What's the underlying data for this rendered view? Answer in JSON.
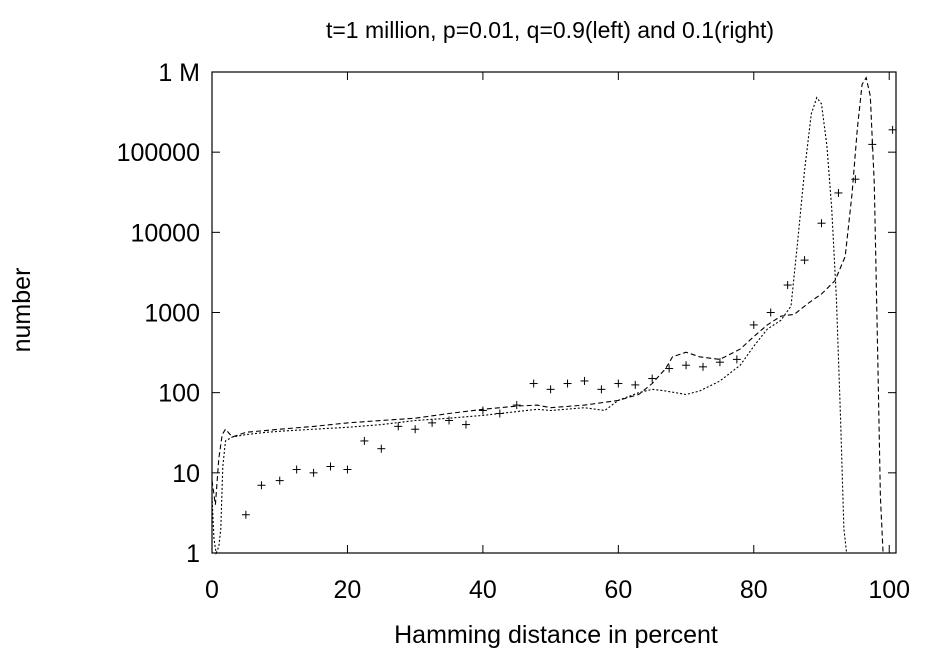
{
  "chart_data": {
    "type": "line",
    "title": "t=1 million, p=0.01, q=0.9(left) and 0.1(right)",
    "xlabel": "Hamming distance in percent",
    "ylabel": "number",
    "xlim": [
      0,
      101
    ],
    "ylim": [
      1,
      1000000
    ],
    "yscale": "log",
    "grid": false,
    "x_ticks": [
      0,
      20,
      40,
      60,
      80,
      100
    ],
    "x_tick_labels": [
      "0",
      "20",
      "40",
      "60",
      "80",
      "100"
    ],
    "y_ticks": [
      1,
      10,
      100,
      1000,
      10000,
      100000,
      1000000
    ],
    "y_tick_labels": [
      "1",
      "10",
      "100",
      "1000",
      "10000",
      "100000",
      "1 M"
    ],
    "series": [
      {
        "style": "dotted",
        "x": [
          0,
          0.3,
          0.6,
          1,
          1.3,
          1.6,
          2,
          3,
          5,
          8,
          10,
          15,
          20,
          25,
          30,
          35,
          40,
          45,
          48,
          50,
          55,
          58,
          60,
          63,
          65,
          67,
          70,
          72,
          75,
          78,
          80,
          82,
          84,
          85.5,
          86.5,
          87.5,
          88.5,
          89.3,
          90,
          90.8,
          91.5,
          92.2,
          92.8,
          93.3,
          93.7
        ],
        "y": [
          5,
          1.5,
          1,
          1.2,
          2,
          12,
          25,
          28,
          30,
          32,
          33,
          35,
          37,
          40,
          45,
          48,
          52,
          58,
          62,
          60,
          65,
          60,
          80,
          100,
          110,
          105,
          95,
          105,
          140,
          220,
          380,
          620,
          800,
          1200,
          8000,
          60000,
          300000,
          480000,
          400000,
          120000,
          20000,
          1500,
          50,
          2,
          1
        ]
      },
      {
        "style": "dashed",
        "x": [
          0,
          0.5,
          1,
          1.5,
          2,
          3,
          5,
          10,
          15,
          20,
          25,
          30,
          35,
          40,
          45,
          48,
          50,
          55,
          60,
          63,
          65,
          67,
          68,
          70,
          72,
          75,
          78,
          80,
          82,
          84,
          86,
          88,
          90,
          92,
          93.5,
          94.5,
          95.3,
          96,
          96.6,
          97.2,
          97.8,
          98.3,
          98.7,
          99.1
        ],
        "y": [
          8,
          4,
          15,
          30,
          35,
          28,
          32,
          35,
          38,
          42,
          45,
          48,
          55,
          62,
          68,
          70,
          65,
          70,
          80,
          95,
          130,
          200,
          280,
          320,
          280,
          260,
          350,
          500,
          700,
          900,
          950,
          1300,
          1700,
          2500,
          5000,
          30000,
          200000,
          700000,
          850000,
          500000,
          40000,
          300,
          5,
          1
        ]
      },
      {
        "style": "markers",
        "x": [
          5,
          7.3,
          10,
          12.5,
          15,
          17.5,
          20,
          22.5,
          25,
          27.5,
          30,
          32.5,
          35,
          37.5,
          40,
          42.5,
          45,
          47.5,
          50,
          52.5,
          55,
          57.5,
          60,
          62.5,
          65,
          67.5,
          70,
          72.5,
          75,
          77.5,
          80,
          82.5,
          85,
          87.5,
          90,
          92.5,
          95,
          97.5,
          100.5
        ],
        "y": [
          3,
          7,
          8,
          11,
          10,
          12,
          11,
          25,
          20,
          38,
          35,
          42,
          45,
          40,
          60,
          55,
          70,
          130,
          110,
          130,
          140,
          110,
          130,
          125,
          150,
          200,
          220,
          210,
          240,
          260,
          700,
          1000,
          2200,
          4500,
          13000,
          31000,
          46000,
          125000,
          190000
        ]
      }
    ]
  }
}
